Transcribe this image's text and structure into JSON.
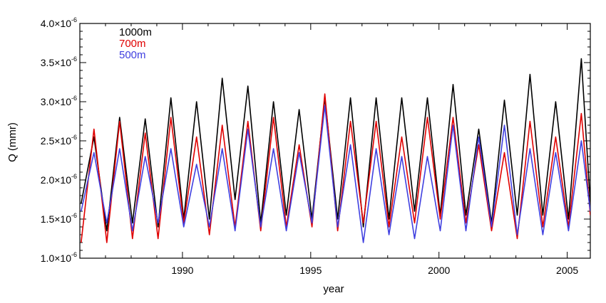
{
  "chart_data": {
    "type": "line",
    "xlabel": "year",
    "ylabel": "Q (mmr)",
    "xlim": [
      1986.0,
      2005.9
    ],
    "ylim": [
      1e-06,
      4e-06
    ],
    "x_ticks": [
      1990,
      1995,
      2000,
      2005
    ],
    "x_tick_labels": [
      "1990",
      "1995",
      "2000",
      "2005"
    ],
    "y_ticks": [
      1e-06,
      1.5e-06,
      2e-06,
      2.5e-06,
      3e-06,
      3.5e-06,
      4e-06
    ],
    "y_tick_mantissas": [
      "1.0×10",
      "1.5×10",
      "2.0×10",
      "2.5×10",
      "3.0×10",
      "3.5×10",
      "4.0×10"
    ],
    "y_tick_exponent": "-6",
    "legend": {
      "placement": "top-left"
    },
    "grid": false,
    "series": [
      {
        "name": "1000m",
        "color": "#000000",
        "x": [
          1986.05,
          1986.55,
          1987.05,
          1987.55,
          1988.05,
          1988.55,
          1989.05,
          1989.55,
          1990.05,
          1990.55,
          1991.05,
          1991.55,
          1992.05,
          1992.55,
          1993.05,
          1993.55,
          1994.05,
          1994.55,
          1995.05,
          1995.55,
          1996.05,
          1996.55,
          1997.05,
          1997.55,
          1998.05,
          1998.55,
          1999.05,
          1999.55,
          2000.05,
          2000.55,
          2001.05,
          2001.55,
          2002.05,
          2002.55,
          2003.05,
          2003.55,
          2004.05,
          2004.55,
          2005.05,
          2005.55,
          2005.9
        ],
        "y": [
          1.7e-06,
          2.55e-06,
          1.35e-06,
          2.8e-06,
          1.45e-06,
          2.78e-06,
          1.4e-06,
          3.05e-06,
          1.5e-06,
          3e-06,
          1.5e-06,
          3.3e-06,
          1.75e-06,
          3.2e-06,
          1.45e-06,
          3e-06,
          1.55e-06,
          2.9e-06,
          1.5e-06,
          3.05e-06,
          1.5e-06,
          3.05e-06,
          1.4e-06,
          3.05e-06,
          1.5e-06,
          3.05e-06,
          1.6e-06,
          3.05e-06,
          1.55e-06,
          3.22e-06,
          1.55e-06,
          2.65e-06,
          1.45e-06,
          3.02e-06,
          1.55e-06,
          3.35e-06,
          1.55e-06,
          3e-06,
          1.5e-06,
          3.55e-06,
          1.7e-06
        ]
      },
      {
        "name": "700m",
        "color": "#e00000",
        "x": [
          1986.05,
          1986.55,
          1987.05,
          1987.55,
          1988.05,
          1988.55,
          1989.05,
          1989.55,
          1990.05,
          1990.55,
          1991.05,
          1991.55,
          1992.05,
          1992.55,
          1993.05,
          1993.55,
          1994.05,
          1994.55,
          1995.05,
          1995.55,
          1996.05,
          1996.55,
          1997.05,
          1997.55,
          1998.05,
          1998.55,
          1999.05,
          1999.55,
          2000.05,
          2000.55,
          2001.05,
          2001.55,
          2002.05,
          2002.55,
          2003.05,
          2003.55,
          2004.05,
          2004.55,
          2005.05,
          2005.55,
          2005.9
        ],
        "y": [
          1.2e-06,
          2.65e-06,
          1.2e-06,
          2.75e-06,
          1.25e-06,
          2.6e-06,
          1.25e-06,
          2.8e-06,
          1.45e-06,
          2.55e-06,
          1.3e-06,
          2.7e-06,
          1.4e-06,
          2.75e-06,
          1.35e-06,
          2.8e-06,
          1.4e-06,
          2.45e-06,
          1.4e-06,
          3.1e-06,
          1.35e-06,
          2.75e-06,
          1.45e-06,
          2.75e-06,
          1.4e-06,
          2.55e-06,
          1.45e-06,
          2.8e-06,
          1.5e-06,
          2.8e-06,
          1.45e-06,
          2.45e-06,
          1.35e-06,
          2.35e-06,
          1.25e-06,
          2.75e-06,
          1.4e-06,
          2.55e-06,
          1.4e-06,
          2.85e-06,
          1.55e-06
        ]
      },
      {
        "name": "500m",
        "color": "#4040e0",
        "x": [
          1986.05,
          1986.55,
          1987.05,
          1987.55,
          1988.05,
          1988.55,
          1989.05,
          1989.55,
          1990.05,
          1990.55,
          1991.05,
          1991.55,
          1992.05,
          1992.55,
          1993.05,
          1993.55,
          1994.05,
          1994.55,
          1995.05,
          1995.55,
          1996.05,
          1996.55,
          1997.05,
          1997.55,
          1998.05,
          1998.55,
          1999.05,
          1999.55,
          2000.05,
          2000.55,
          2001.05,
          2001.55,
          2002.05,
          2002.55,
          2003.05,
          2003.55,
          2004.05,
          2004.55,
          2005.05,
          2005.55,
          2005.9
        ],
        "y": [
          1.6e-06,
          2.35e-06,
          1.45e-06,
          2.4e-06,
          1.35e-06,
          2.3e-06,
          1.45e-06,
          2.4e-06,
          1.4e-06,
          2.2e-06,
          1.4e-06,
          2.4e-06,
          1.35e-06,
          2.65e-06,
          1.4e-06,
          2.4e-06,
          1.35e-06,
          2.35e-06,
          1.45e-06,
          2.95e-06,
          1.4e-06,
          2.45e-06,
          1.2e-06,
          2.4e-06,
          1.3e-06,
          2.3e-06,
          1.25e-06,
          2.3e-06,
          1.35e-06,
          2.7e-06,
          1.35e-06,
          2.55e-06,
          1.4e-06,
          2.7e-06,
          1.3e-06,
          2.4e-06,
          1.3e-06,
          2.35e-06,
          1.35e-06,
          2.5e-06,
          1.6e-06
        ]
      }
    ]
  }
}
